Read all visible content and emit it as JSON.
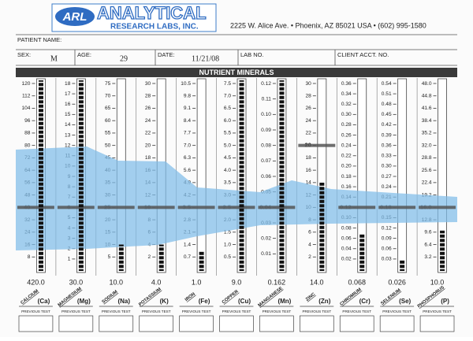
{
  "header": {
    "logo": "ARL",
    "company": "ANALYTICAL",
    "company_sub": "RESEARCH LABS, INC.",
    "address": "2225 W. Alice Ave.  •  Phoenix, AZ 85021 USA  •  (602) 995-1580"
  },
  "fields": {
    "patient_name_label": "PATIENT NAME:",
    "sex_label": "SEX:",
    "sex": "M",
    "age_label": "AGE:",
    "age": "29",
    "date_label": "DATE:",
    "date": "11/21/08",
    "lab_no_label": "LAB NO.",
    "client_acct_label": "CLIENT ACCT. NO."
  },
  "section_title": "NUTRIENT MINERALS",
  "previous_test_label": "PREVIOUS TEST",
  "chart_data": {
    "type": "level-columns",
    "bar_color": "#111111",
    "band_color": "#7fbde9",
    "minerals": [
      {
        "name": "CALCIUM",
        "symbol": "(Ca)",
        "value": 420,
        "value_label": "420.0",
        "reference": 40,
        "ylim": [
          0,
          120
        ],
        "ticks": [
          120,
          112,
          104,
          96,
          88,
          80,
          72,
          64,
          56,
          48,
          40,
          32,
          24,
          16,
          8
        ]
      },
      {
        "name": "MAGNESIUM",
        "symbol": "(Mg)",
        "value": 30,
        "value_label": "30.0",
        "reference": 6,
        "ylim": [
          0,
          18
        ],
        "ticks": [
          18,
          17,
          16,
          15,
          14,
          13,
          12,
          11,
          10,
          9,
          8,
          7,
          6,
          5,
          4,
          3,
          2,
          1
        ]
      },
      {
        "name": "SODIUM",
        "symbol": "(Na)",
        "value": 10,
        "value_label": "10.0",
        "reference": 25,
        "ylim": [
          0,
          75
        ],
        "ticks": [
          75,
          70,
          65,
          60,
          55,
          50,
          45,
          40,
          35,
          30,
          25,
          20,
          15,
          10,
          5
        ]
      },
      {
        "name": "POTASSIUM",
        "symbol": "(K)",
        "value": 4,
        "value_label": "4.0",
        "reference": 10,
        "ylim": [
          0,
          30
        ],
        "ticks": [
          30,
          28,
          26,
          24,
          22,
          20,
          18,
          16,
          14,
          12,
          10,
          8,
          6,
          4,
          2
        ]
      },
      {
        "name": "IRON",
        "symbol": "(Fe)",
        "value": 1,
        "value_label": "1.0",
        "reference": 3.5,
        "ylim": [
          0,
          10.5
        ],
        "ticks": [
          10.5,
          9.8,
          9.1,
          8.4,
          7.7,
          {
            "value": 7,
            "label": "7.0"
          },
          6.3,
          5.6,
          4.9,
          4.2,
          3.5,
          2.8,
          2.1,
          1.4,
          0.7
        ]
      },
      {
        "name": "COPPER",
        "symbol": "(Cu)",
        "value": 9,
        "value_label": "9.0",
        "reference": 2.5,
        "ylim": [
          0,
          7.5
        ],
        "ticks": [
          7.5,
          {
            "value": 7,
            "label": "7.0"
          },
          6.5,
          {
            "value": 6,
            "label": "6.0"
          },
          5.5,
          {
            "value": 5,
            "label": "5.0"
          },
          4.5,
          {
            "value": 4,
            "label": "4.0"
          },
          3.5,
          {
            "value": 3,
            "label": "3.0"
          },
          2.5,
          {
            "value": 2,
            "label": "2.0"
          },
          1.5,
          {
            "value": 1,
            "label": "1.0"
          },
          0.5
        ]
      },
      {
        "name": "MANGANESE",
        "symbol": "(Mn)",
        "value": 0.162,
        "value_label": "0.162",
        "reference": 0.04,
        "ylim": [
          0,
          0.12
        ],
        "ticks": [
          0.12,
          0.11,
          {
            "value": 0.1,
            "label": "0.10"
          },
          0.09,
          0.08,
          0.07,
          0.06,
          0.05,
          0.04,
          0.03,
          0.02,
          0.01
        ]
      },
      {
        "name": "ZINC",
        "symbol": "(Zn)",
        "value": 14,
        "value_label": "14.0",
        "reference": 20,
        "ylim": [
          0,
          30
        ],
        "ticks": [
          30,
          28,
          26,
          24,
          22,
          20,
          18,
          16,
          14,
          12,
          10,
          8,
          6,
          4,
          2
        ]
      },
      {
        "name": "CHROMIUM",
        "symbol": "(Cr)",
        "value": 0.068,
        "value_label": "0.068",
        "reference": 0.12,
        "ylim": [
          0,
          0.36
        ],
        "ticks": [
          0.36,
          0.34,
          0.32,
          {
            "value": 0.3,
            "label": "0.30"
          },
          0.28,
          0.26,
          0.24,
          0.22,
          {
            "value": 0.2,
            "label": "0.20"
          },
          0.18,
          0.16,
          0.14,
          0.12,
          {
            "value": 0.1,
            "label": "0.10"
          },
          0.08,
          0.06,
          0.04,
          0.02
        ]
      },
      {
        "name": "SELENIUM",
        "symbol": "(Se)",
        "value": 0.026,
        "value_label": "0.026",
        "reference": 0.18,
        "ylim": [
          0,
          0.54
        ],
        "ticks": [
          0.54,
          0.51,
          0.48,
          0.45,
          0.42,
          0.39,
          0.36,
          0.33,
          {
            "value": 0.3,
            "label": "0.30"
          },
          0.27,
          0.24,
          0.21,
          0.18,
          0.15,
          0.12,
          0.09,
          0.06,
          0.03
        ]
      },
      {
        "name": "PHOSPHORUS",
        "symbol": "(P)",
        "value": 10,
        "value_label": "10.0",
        "reference": 16,
        "ylim": [
          0,
          48
        ],
        "ticks": [
          {
            "value": 48,
            "label": "48.0"
          },
          44.8,
          41.6,
          38.4,
          35.2,
          {
            "value": 32,
            "label": "32.0"
          },
          28.8,
          25.6,
          22.4,
          19.2,
          {
            "value": 16,
            "label": "16.0"
          },
          12.8,
          9.6,
          6.4,
          3.2
        ]
      }
    ]
  }
}
